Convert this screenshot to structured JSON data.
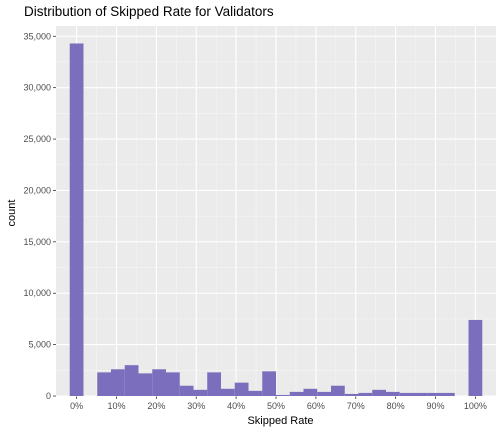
{
  "chart_data": {
    "type": "bar",
    "title": "Distribution of Skipped Rate for Validators",
    "xlabel": "Skipped Rate",
    "ylabel": "count",
    "x_ticks": [
      "0%",
      "10%",
      "20%",
      "30%",
      "40%",
      "50%",
      "60%",
      "70%",
      "80%",
      "90%",
      "100%"
    ],
    "y_ticks": [
      "0",
      "5,000",
      "10,000",
      "15,000",
      "20,000",
      "25,000",
      "30,000",
      "35,000"
    ],
    "xlim": [
      -0.0517,
      1.0517
    ],
    "ylim": [
      0,
      36000
    ],
    "bin_width": 0.0345,
    "bin_centers": [
      0,
      0.0345,
      0.069,
      0.1034,
      0.1379,
      0.1724,
      0.2069,
      0.2414,
      0.2759,
      0.3103,
      0.3448,
      0.3793,
      0.4138,
      0.4483,
      0.4828,
      0.5172,
      0.5517,
      0.5862,
      0.6207,
      0.6552,
      0.6897,
      0.7241,
      0.7586,
      0.7931,
      0.8276,
      0.8621,
      0.8966,
      0.931,
      0.9655,
      1.0
    ],
    "counts": [
      34300,
      0,
      2300,
      2600,
      3000,
      2200,
      2600,
      2300,
      1000,
      600,
      2300,
      700,
      1300,
      500,
      2400,
      100,
      400,
      700,
      400,
      1000,
      200,
      300,
      600,
      400,
      300,
      300,
      300,
      300,
      0,
      7400
    ],
    "bar_color": "#7b6fbd",
    "panel_background": "#ebebeb",
    "grid": true
  }
}
